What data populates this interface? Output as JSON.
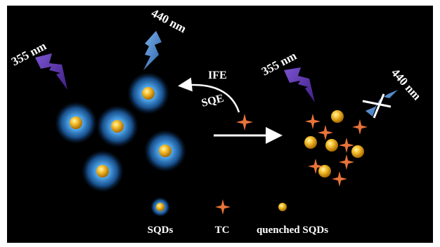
{
  "labels": {
    "nm355_left": "355 nm",
    "nm440_left": "440 nm",
    "nm355_right": "355 nm",
    "nm440_right": "440 nm",
    "ife": "IFE",
    "sqe": "SQE"
  },
  "legend": {
    "sqds": "SQDs",
    "tc": "TC",
    "quenched": "quenched SQDs"
  },
  "colors": {
    "background": "#000000",
    "glow": "#3a8fd6",
    "dot_gold": "#f4b120",
    "tc_orange": "#e8733a",
    "uv_purple": "#6b3fb8",
    "blue_light": "#4a86cf"
  }
}
